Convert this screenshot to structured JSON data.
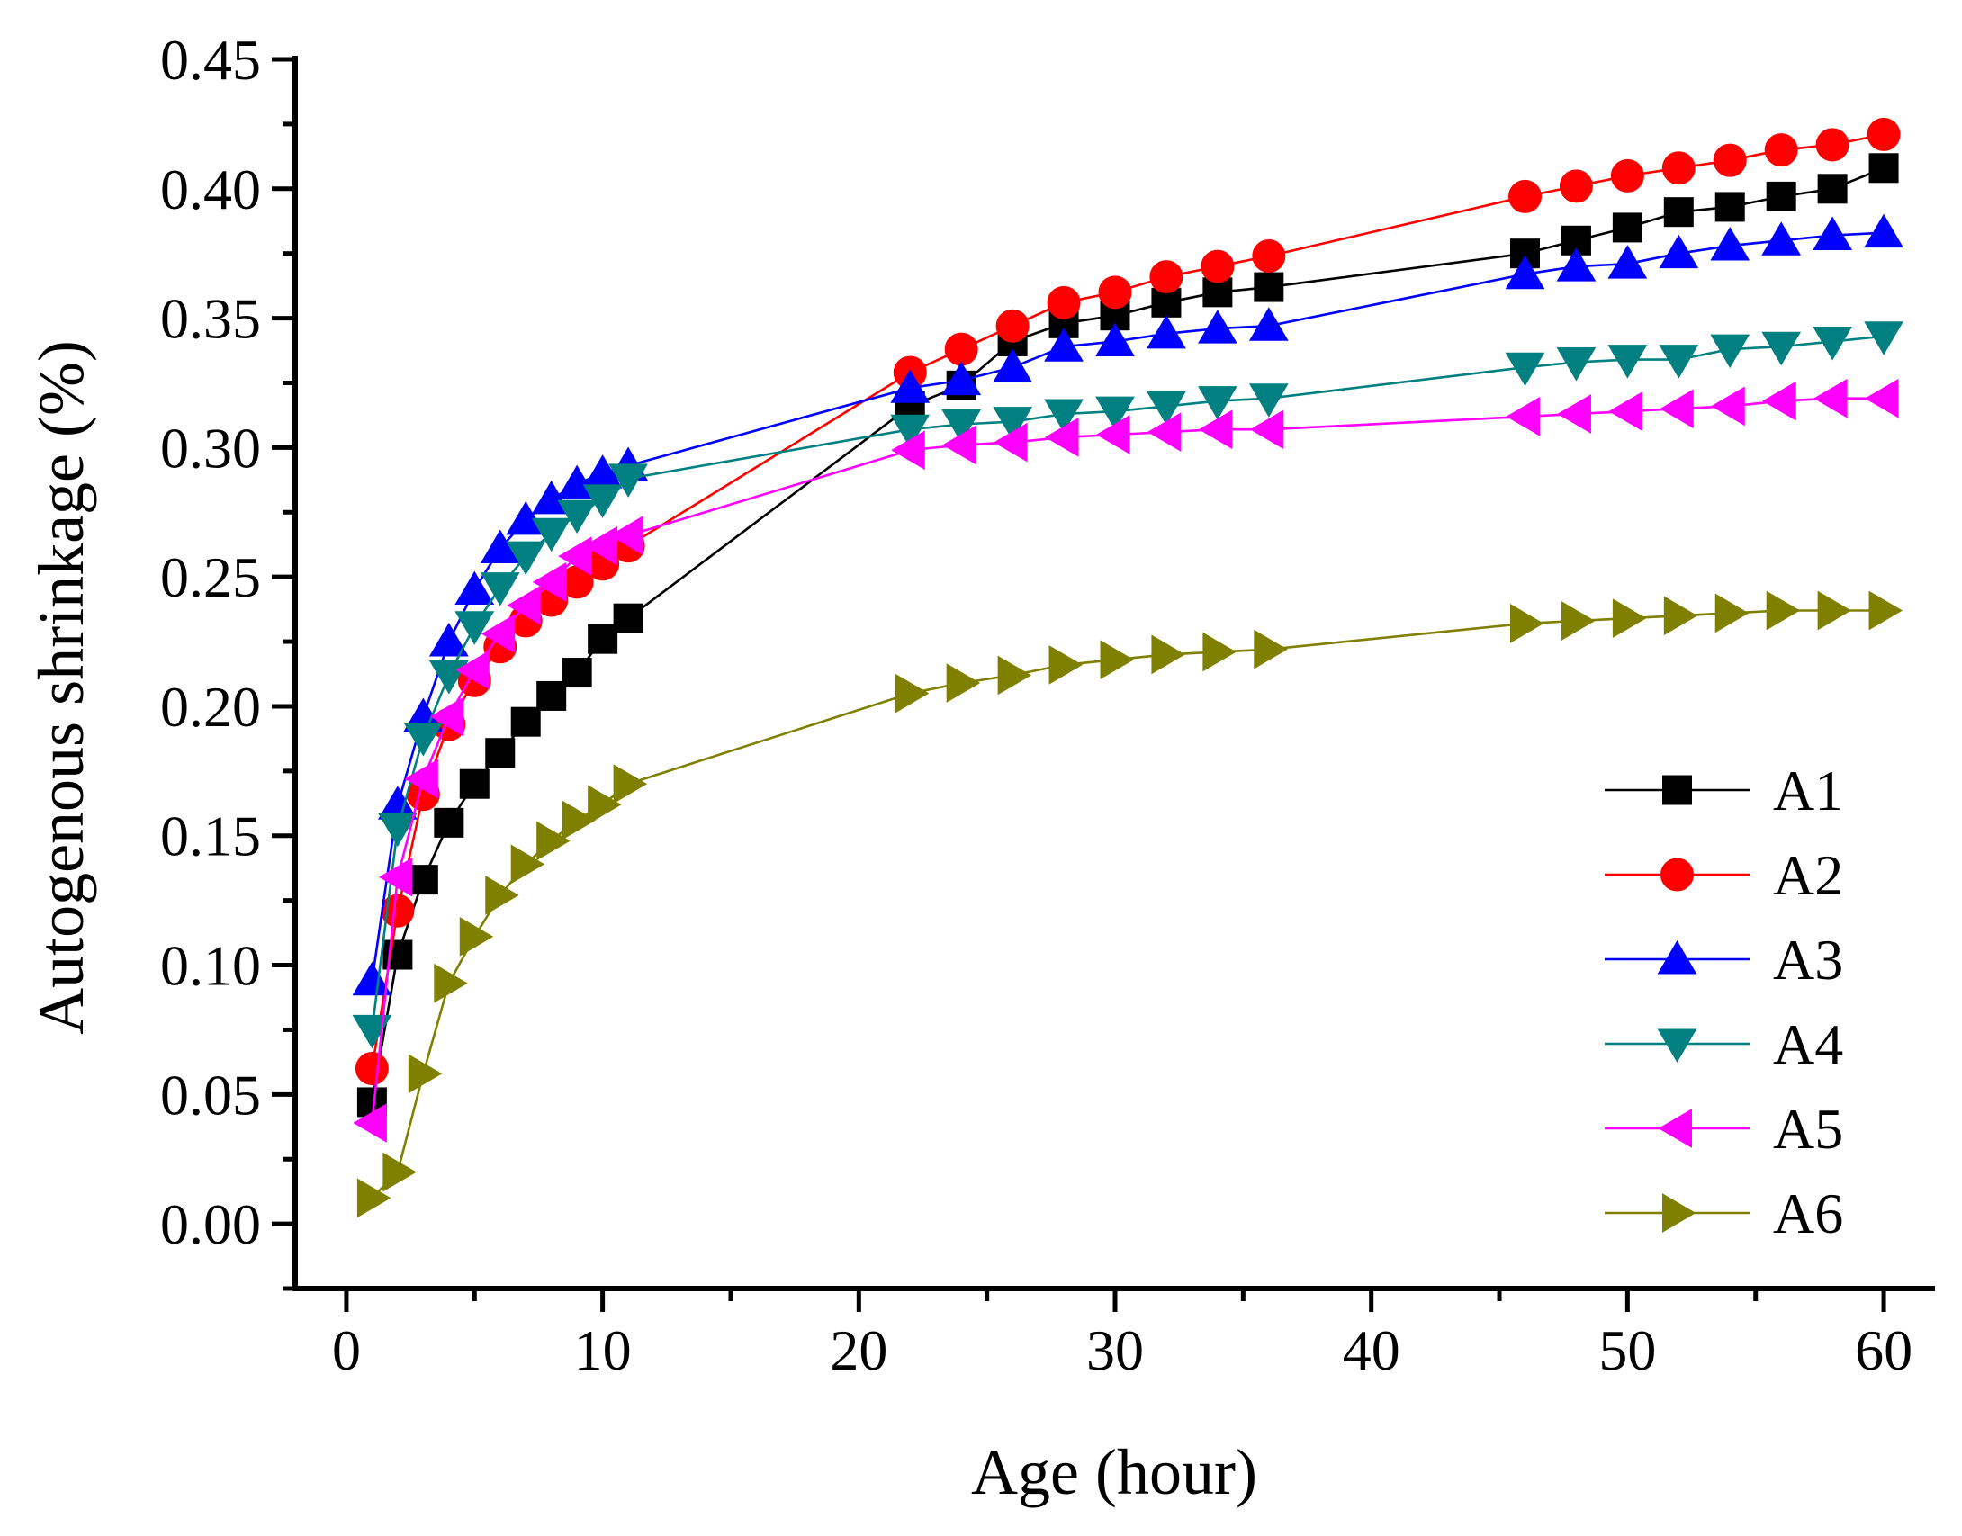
{
  "chart_data": {
    "type": "line",
    "title": "",
    "xlabel": "Age (hour)",
    "ylabel": "Autogenous shrinkage (%)",
    "xlim": [
      -2,
      62
    ],
    "ylim": [
      -0.025,
      0.45
    ],
    "x_ticks": [
      "0",
      "10",
      "20",
      "30",
      "40",
      "50",
      "60"
    ],
    "y_ticks": [
      "0.00",
      "0.05",
      "0.10",
      "0.15",
      "0.20",
      "0.25",
      "0.30",
      "0.35",
      "0.40",
      "0.45"
    ],
    "grid": false,
    "legend_position": "bottom-right",
    "series": [
      {
        "name": "A1",
        "color": "#000000",
        "marker": "square",
        "x": [
          1,
          2,
          3,
          4,
          5,
          6,
          7,
          8,
          9,
          10,
          11,
          22,
          24,
          26,
          28,
          30,
          32,
          34,
          36,
          46,
          48,
          50,
          52,
          54,
          56,
          58,
          60
        ],
        "y": [
          0.047,
          0.104,
          0.133,
          0.155,
          0.17,
          0.182,
          0.194,
          0.204,
          0.213,
          0.226,
          0.234,
          0.316,
          0.324,
          0.341,
          0.348,
          0.351,
          0.356,
          0.36,
          0.362,
          0.375,
          0.38,
          0.385,
          0.391,
          0.393,
          0.397,
          0.4,
          0.408
        ]
      },
      {
        "name": "A2",
        "color": "#ff0000",
        "marker": "circle",
        "x": [
          1,
          2,
          3,
          4,
          5,
          6,
          7,
          8,
          9,
          10,
          11,
          22,
          24,
          26,
          28,
          30,
          32,
          34,
          36,
          46,
          48,
          50,
          52,
          54,
          56,
          58,
          60
        ],
        "y": [
          0.06,
          0.121,
          0.166,
          0.193,
          0.21,
          0.223,
          0.233,
          0.241,
          0.248,
          0.255,
          0.262,
          0.329,
          0.338,
          0.347,
          0.356,
          0.36,
          0.366,
          0.37,
          0.374,
          0.397,
          0.401,
          0.405,
          0.408,
          0.411,
          0.415,
          0.417,
          0.421
        ]
      },
      {
        "name": "A3",
        "color": "#0000ff",
        "marker": "triangle-up",
        "x": [
          1,
          2,
          3,
          4,
          5,
          6,
          7,
          8,
          9,
          10,
          11,
          22,
          24,
          26,
          28,
          30,
          32,
          34,
          36,
          46,
          48,
          50,
          52,
          54,
          56,
          58,
          60
        ],
        "y": [
          0.094,
          0.162,
          0.196,
          0.225,
          0.245,
          0.261,
          0.272,
          0.28,
          0.286,
          0.29,
          0.293,
          0.323,
          0.326,
          0.331,
          0.339,
          0.341,
          0.344,
          0.346,
          0.347,
          0.367,
          0.37,
          0.371,
          0.375,
          0.378,
          0.38,
          0.382,
          0.383
        ]
      },
      {
        "name": "A4",
        "color": "#008080",
        "marker": "triangle-down",
        "x": [
          1,
          2,
          3,
          4,
          5,
          6,
          7,
          8,
          9,
          10,
          11,
          22,
          24,
          26,
          28,
          30,
          32,
          34,
          36,
          46,
          48,
          50,
          52,
          54,
          56,
          58,
          60
        ],
        "y": [
          0.075,
          0.153,
          0.188,
          0.212,
          0.231,
          0.246,
          0.258,
          0.267,
          0.274,
          0.28,
          0.288,
          0.307,
          0.309,
          0.31,
          0.313,
          0.314,
          0.316,
          0.318,
          0.319,
          0.331,
          0.333,
          0.334,
          0.334,
          0.338,
          0.339,
          0.341,
          0.343
        ]
      },
      {
        "name": "A5",
        "color": "#ff00ff",
        "marker": "triangle-left",
        "x": [
          1,
          2,
          3,
          4,
          5,
          6,
          7,
          8,
          9,
          10,
          11,
          22,
          24,
          26,
          28,
          30,
          32,
          34,
          36,
          46,
          48,
          50,
          52,
          54,
          56,
          58,
          60
        ],
        "y": [
          0.039,
          0.134,
          0.172,
          0.196,
          0.214,
          0.228,
          0.239,
          0.248,
          0.258,
          0.262,
          0.266,
          0.299,
          0.301,
          0.302,
          0.304,
          0.305,
          0.306,
          0.307,
          0.307,
          0.312,
          0.313,
          0.314,
          0.315,
          0.316,
          0.318,
          0.319,
          0.319
        ]
      },
      {
        "name": "A6",
        "color": "#808000",
        "marker": "triangle-right",
        "x": [
          1,
          2,
          3,
          4,
          5,
          6,
          7,
          8,
          9,
          10,
          11,
          22,
          24,
          26,
          28,
          30,
          32,
          34,
          36,
          46,
          48,
          50,
          52,
          54,
          56,
          58,
          60
        ],
        "y": [
          0.01,
          0.02,
          0.058,
          0.093,
          0.111,
          0.127,
          0.139,
          0.148,
          0.156,
          0.162,
          0.17,
          0.205,
          0.209,
          0.212,
          0.216,
          0.218,
          0.22,
          0.221,
          0.222,
          0.232,
          0.233,
          0.234,
          0.235,
          0.236,
          0.237,
          0.237,
          0.237
        ]
      }
    ]
  }
}
